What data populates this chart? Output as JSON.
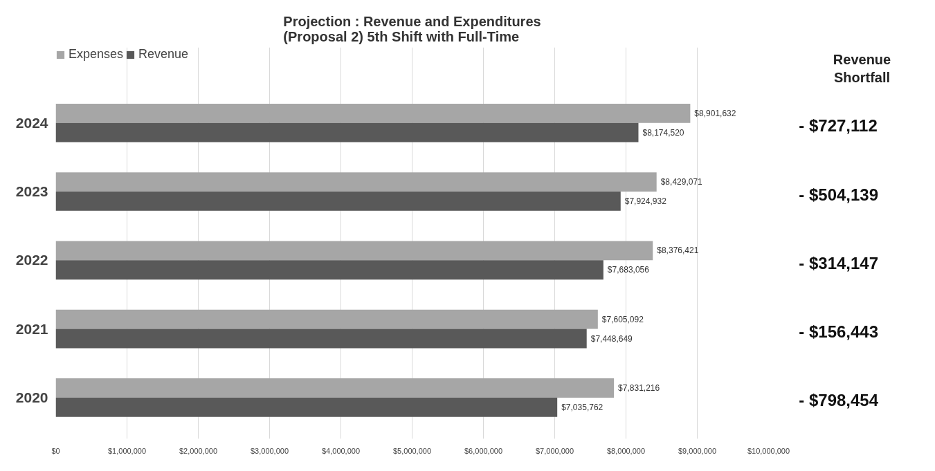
{
  "chart_data": {
    "type": "bar",
    "orientation": "horizontal",
    "title": "Projection : Revenue and Expenditures\n(Proposal 2) 5th Shift with Full-Time",
    "categories": [
      "2024",
      "2023",
      "2022",
      "2021",
      "2020"
    ],
    "series": [
      {
        "name": "Expenses",
        "color": "#a6a6a6",
        "values": [
          8901632,
          8429071,
          8376421,
          7605092,
          7831216
        ],
        "value_labels": [
          "$8,901,632",
          "$8,429,071",
          "$8,376,421",
          "$7,605,092",
          "$7,831,216"
        ]
      },
      {
        "name": "Revenue",
        "color": "#595959",
        "values": [
          8174520,
          7924932,
          7683056,
          7448649,
          7035762
        ],
        "value_labels": [
          "$8,174,520",
          "$7,924,932",
          "$7,683,056",
          "$7,448,649",
          "$7,035,762"
        ]
      }
    ],
    "xlim": [
      0,
      10000000
    ],
    "xticks": [
      {
        "value": 0,
        "label": "$0"
      },
      {
        "value": 1000000,
        "label": "$1,000,000"
      },
      {
        "value": 2000000,
        "label": "$2,000,000"
      },
      {
        "value": 3000000,
        "label": "$3,000,000"
      },
      {
        "value": 4000000,
        "label": "$4,000,000"
      },
      {
        "value": 5000000,
        "label": "$5,000,000"
      },
      {
        "value": 6000000,
        "label": "$6,000,000"
      },
      {
        "value": 7000000,
        "label": "$7,000,000"
      },
      {
        "value": 8000000,
        "label": "$8,000,000"
      },
      {
        "value": 9000000,
        "label": "$9,000,000"
      },
      {
        "value": 10000000,
        "label": "$10,000,000"
      }
    ],
    "annotations": [
      "Revenue Shortfall",
      "- $727,112",
      "- $504,139",
      "- $314,147",
      "- $156,443",
      "- $798,454"
    ],
    "grid": "x",
    "legend": "top left"
  }
}
